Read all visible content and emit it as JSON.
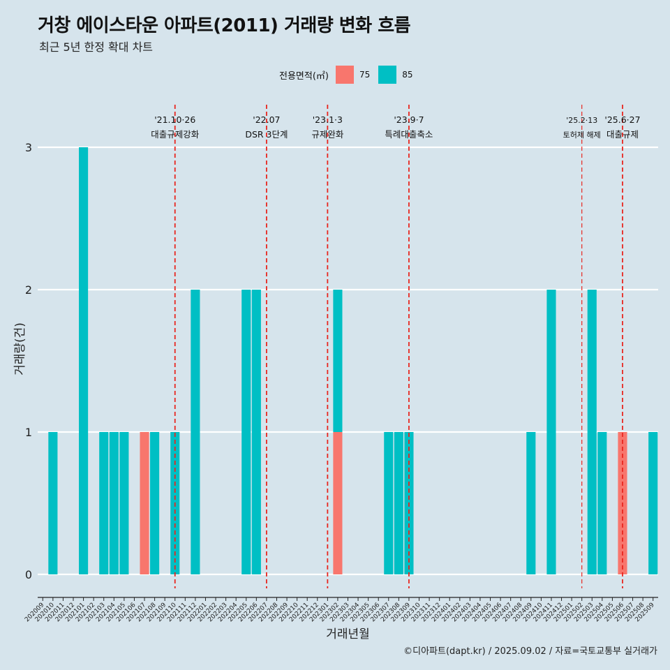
{
  "title": "거창 에이스타운 아파트(2011) 거래량 변화 흐름",
  "subtitle": "최근 5년 한정 확대 차트",
  "caption": "©디아파트(dapt.kr) / 2025.09.02 / 자료=국토교통부 실거래가",
  "legend": {
    "title": "전용면적(㎡)",
    "items": [
      {
        "label": "75",
        "color": "#F8766D"
      },
      {
        "label": "85",
        "color": "#00BFC4"
      }
    ]
  },
  "chart_data": {
    "type": "bar",
    "stacked": true,
    "xlabel": "거래년월",
    "ylabel": "거래량(건)",
    "ylim": [
      0,
      3
    ],
    "yticks": [
      0,
      1,
      2,
      3
    ],
    "grid": true,
    "legend_position": "top",
    "categories": [
      "202009",
      "202010",
      "202011",
      "202012",
      "202101",
      "202102",
      "202103",
      "202104",
      "202105",
      "202106",
      "202107",
      "202108",
      "202109",
      "202110",
      "202111",
      "202112",
      "202201",
      "202202",
      "202203",
      "202204",
      "202205",
      "202206",
      "202207",
      "202208",
      "202209",
      "202210",
      "202211",
      "202212",
      "202301",
      "202302",
      "202303",
      "202304",
      "202305",
      "202306",
      "202307",
      "202308",
      "202309",
      "202310",
      "202311",
      "202312",
      "202401",
      "202402",
      "202403",
      "202404",
      "202405",
      "202406",
      "202407",
      "202408",
      "202409",
      "202410",
      "202411",
      "202412",
      "202501",
      "202502",
      "202503",
      "202504",
      "202505",
      "202506",
      "202507",
      "202508",
      "202509"
    ],
    "series": [
      {
        "name": "75",
        "color": "#F8766D",
        "values": {
          "202107": 1,
          "202302": 1,
          "202506": 1
        }
      },
      {
        "name": "85",
        "color": "#00BFC4",
        "values": {
          "202010": 1,
          "202101": 3,
          "202103": 1,
          "202104": 1,
          "202105": 1,
          "202108": 1,
          "202110": 1,
          "202112": 2,
          "202205": 2,
          "202206": 2,
          "202302": 1,
          "202307": 1,
          "202308": 1,
          "202309": 1,
          "202409": 1,
          "202411": 2,
          "202503": 2,
          "202504": 1,
          "202509": 1
        }
      }
    ],
    "annotations": [
      {
        "x": "202110",
        "date": "'21.10·26",
        "label": "대출규제강화",
        "size": "normal"
      },
      {
        "x": "202207",
        "date": "'22.07",
        "label": "DSR 3단계",
        "size": "normal"
      },
      {
        "x": "202301",
        "date": "'23.1·3",
        "label": "규제완화",
        "size": "normal"
      },
      {
        "x": "202309",
        "date": "'23.9·7",
        "label": "특례대출축소",
        "size": "normal"
      },
      {
        "x": "202502",
        "date": "'25.2·13",
        "label": "토허제 해제",
        "size": "small"
      },
      {
        "x": "202506",
        "date": "'25.6·27",
        "label": "대출규제",
        "size": "normal"
      }
    ]
  }
}
